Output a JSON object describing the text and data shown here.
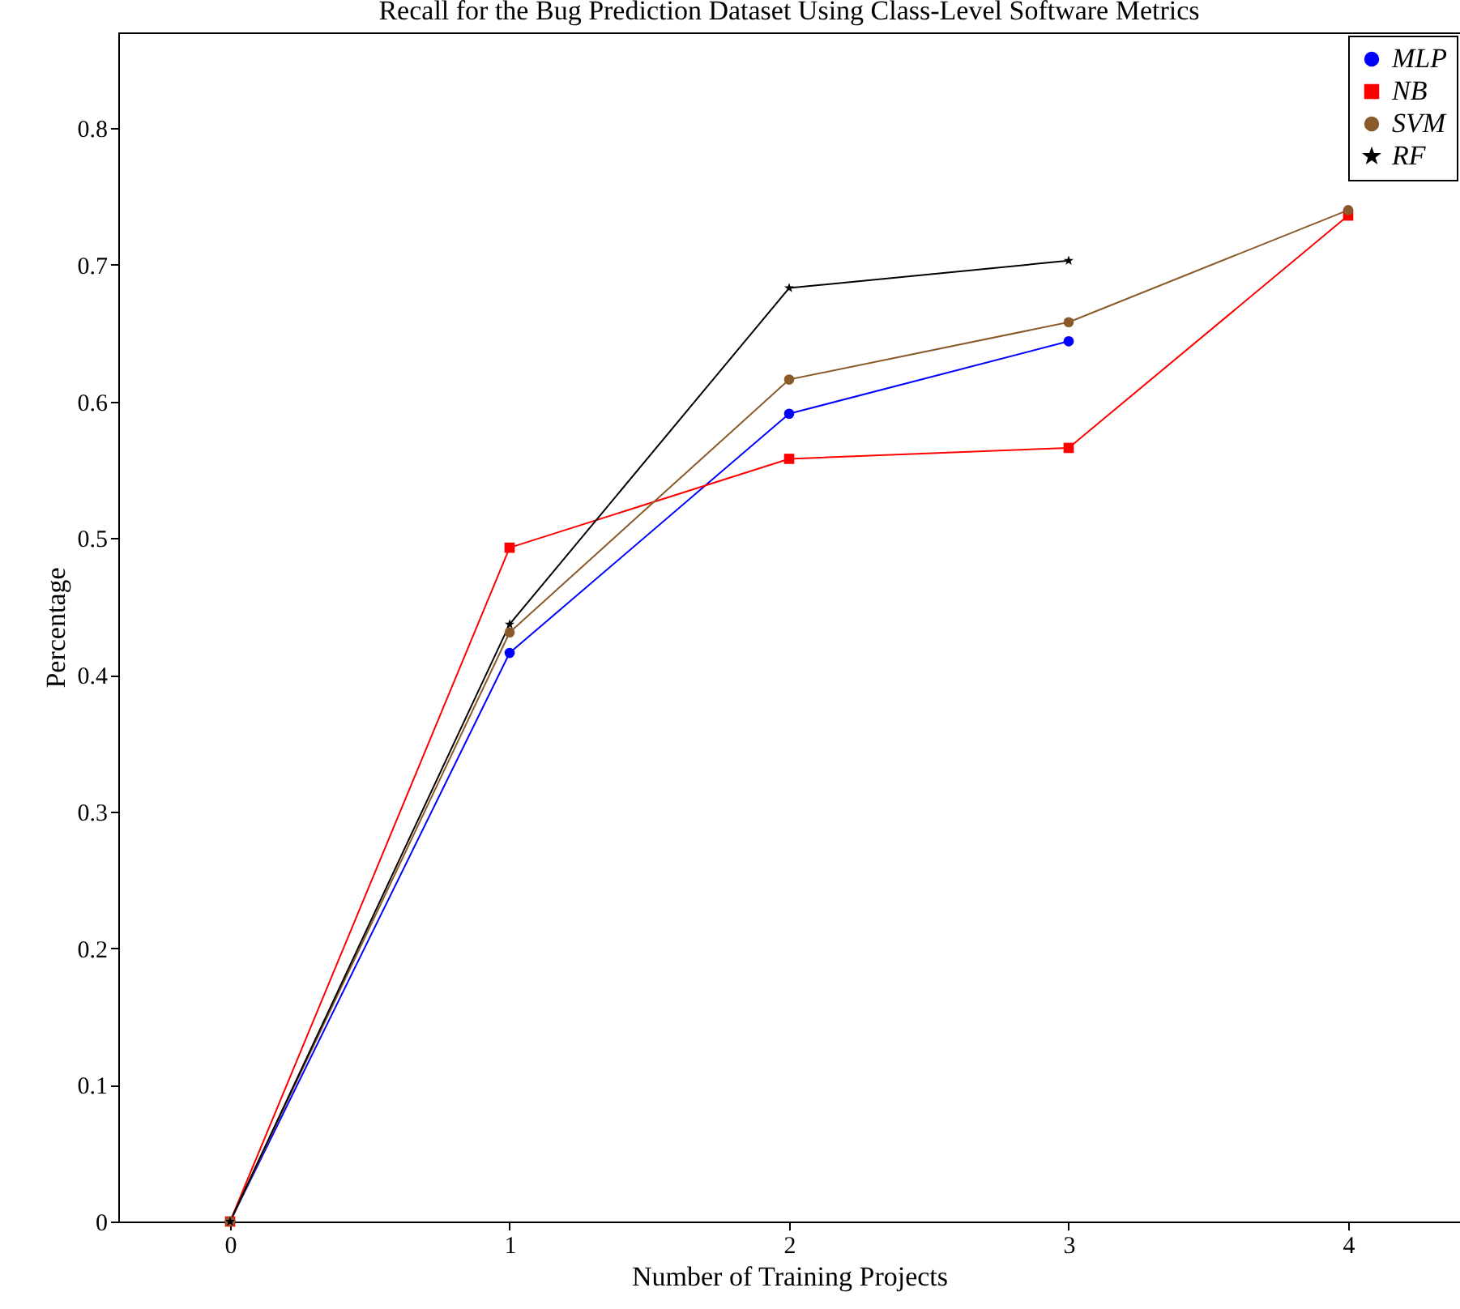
{
  "chart_data": {
    "type": "line",
    "title": "Recall for the Bug Prediction Dataset Using Class-Level Software Metrics",
    "xlabel": "Number of Training Projects",
    "ylabel": "Percentage",
    "x": [
      0,
      1,
      2,
      3,
      4
    ],
    "xlim": [
      -0.4,
      4.4
    ],
    "xticks": [
      0,
      1,
      2,
      3,
      4
    ],
    "ylim": [
      0,
      0.87
    ],
    "yticks": [
      0,
      0.1,
      0.2,
      0.3,
      0.4,
      0.5,
      0.6,
      0.7,
      0.8
    ],
    "series": [
      {
        "name": "MLP",
        "color": "#0000ff",
        "marker": "circle",
        "values": [
          0,
          0.416,
          0.591,
          0.644,
          null
        ]
      },
      {
        "name": "NB",
        "color": "#ff0000",
        "marker": "square",
        "values": [
          0,
          0.493,
          0.558,
          0.566,
          0.736
        ]
      },
      {
        "name": "SVM",
        "color": "#8b5a2b",
        "marker": "circle",
        "values": [
          0,
          0.431,
          0.616,
          0.658,
          0.74
        ]
      },
      {
        "name": "RF",
        "color": "#000000",
        "marker": "star",
        "values": [
          0,
          0.437,
          0.683,
          0.703,
          null
        ]
      }
    ],
    "legend": "top right",
    "grid": false,
    "line_style": "solid"
  }
}
